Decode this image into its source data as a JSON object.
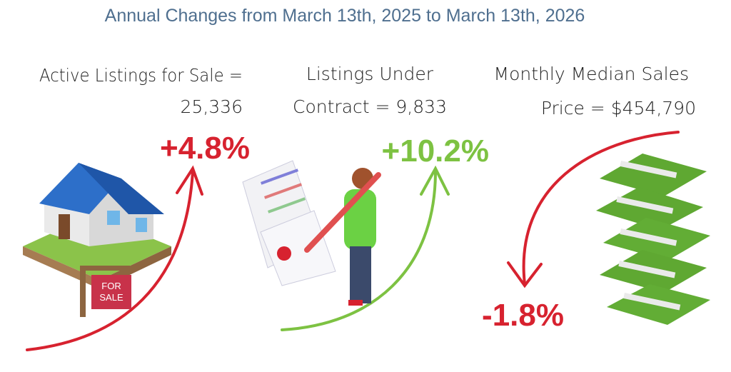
{
  "header": {
    "title": "Annual Changes from March 13th, 2025 to March 13th, 2026"
  },
  "panels": [
    {
      "label": [
        "Active Listings for Sale =",
        "25,336"
      ],
      "change": "+4.8%"
    },
    {
      "label": [
        "Listings Under",
        "Contract = 9,833"
      ],
      "change": "+10.2%"
    },
    {
      "label": [
        "Monthly Median Sales",
        "Price = $454,790"
      ],
      "change": "-1.8%"
    }
  ]
}
